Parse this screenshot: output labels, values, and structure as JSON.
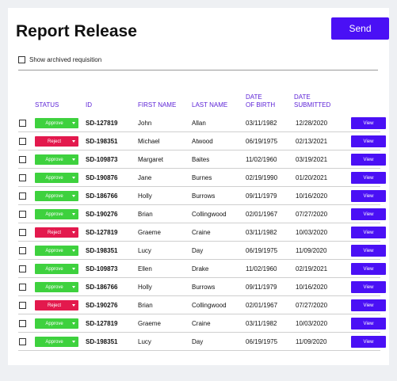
{
  "page": {
    "title": "Report Release",
    "send_label": "Send",
    "archived_label": "Show archived requisition"
  },
  "colors": {
    "accent": "#4a10f5",
    "header_text": "#5a1fd6",
    "approve": "#3ed13e",
    "reject": "#e3194d"
  },
  "table": {
    "headers": {
      "status": "STATUS",
      "id": "ID",
      "first_name": "FIRST NAME",
      "last_name": "LAST NAME",
      "dob_line1": "DATE",
      "dob_line2": "OF BIRTH",
      "submitted_line1": "DATE",
      "submitted_line2": "SUBMITTED"
    },
    "view_label": "View",
    "rows": [
      {
        "status": "Approve",
        "id": "SD-127819",
        "first": "John",
        "last": "Allan",
        "dob": "03/11/1982",
        "submitted": "12/28/2020"
      },
      {
        "status": "Reject",
        "id": "SD-198351",
        "first": "Michael",
        "last": "Atwood",
        "dob": "06/19/1975",
        "submitted": "02/13/2021"
      },
      {
        "status": "Approve",
        "id": "SD-109873",
        "first": "Margaret",
        "last": "Baites",
        "dob": "11/02/1960",
        "submitted": "03/19/2021"
      },
      {
        "status": "Approve",
        "id": "SD-190876",
        "first": "Jane",
        "last": "Burnes",
        "dob": "02/19/1990",
        "submitted": "01/20/2021"
      },
      {
        "status": "Approve",
        "id": "SD-186766",
        "first": "Holly",
        "last": "Burrows",
        "dob": "09/11/1979",
        "submitted": "10/16/2020"
      },
      {
        "status": "Approve",
        "id": "SD-190276",
        "first": "Brian",
        "last": "Collingwood",
        "dob": "02/01/1967",
        "submitted": "07/27/2020"
      },
      {
        "status": "Reject",
        "id": "SD-127819",
        "first": "Graeme",
        "last": "Craine",
        "dob": "03/11/1982",
        "submitted": "10/03/2020"
      },
      {
        "status": "Approve",
        "id": "SD-198351",
        "first": "Lucy",
        "last": "Day",
        "dob": "06/19/1975",
        "submitted": "11/09/2020"
      },
      {
        "status": "Approve",
        "id": "SD-109873",
        "first": "Ellen",
        "last": "Drake",
        "dob": "11/02/1960",
        "submitted": "02/19/2021"
      },
      {
        "status": "Approve",
        "id": "SD-186766",
        "first": "Holly",
        "last": "Burrows",
        "dob": "09/11/1979",
        "submitted": "10/16/2020"
      },
      {
        "status": "Reject",
        "id": "SD-190276",
        "first": "Brian",
        "last": "Collingwood",
        "dob": "02/01/1967",
        "submitted": "07/27/2020"
      },
      {
        "status": "Approve",
        "id": "SD-127819",
        "first": "Graeme",
        "last": "Craine",
        "dob": "03/11/1982",
        "submitted": "10/03/2020"
      },
      {
        "status": "Approve",
        "id": "SD-198351",
        "first": "Lucy",
        "last": "Day",
        "dob": "06/19/1975",
        "submitted": "11/09/2020"
      }
    ]
  }
}
